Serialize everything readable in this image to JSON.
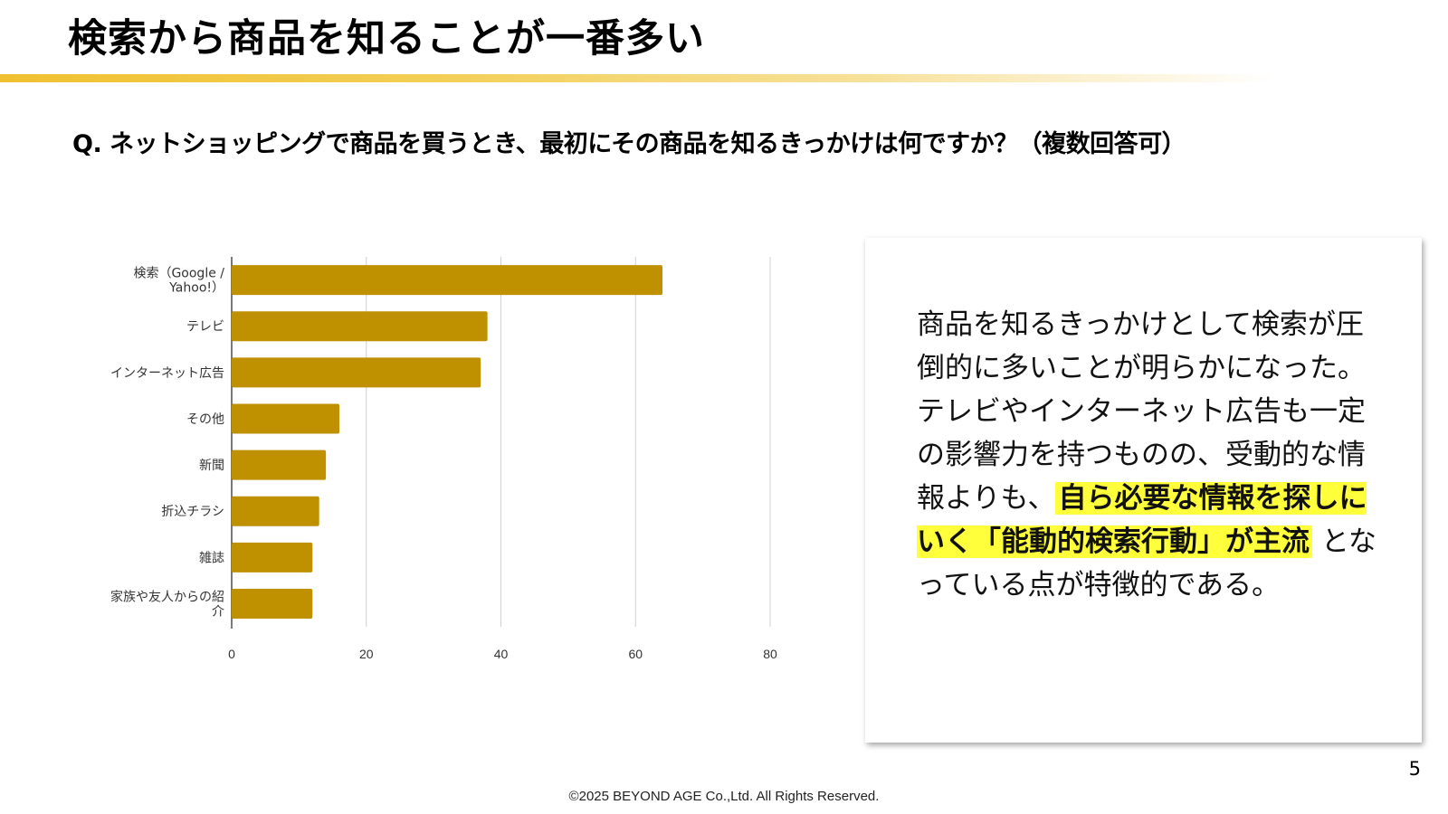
{
  "slide": {
    "title": "検索から商品を知ることが一番多い",
    "question": "Q. ネットショッピングで商品を買うとき、最初にその商品を知るきっかけは何ですか？（複数回答可）",
    "page_number": "5",
    "footer": "©2025 BEYOND AGE Co.,Ltd. All Rights Reserved."
  },
  "callout": {
    "text_before": "商品を知るきっかけとして検索が圧倒的に多いことが明らかになった。テレビやインターネット広告も一定の影響力を持つものの、受動的な情報よりも、",
    "highlight": "自ら必要な情報を探しにいく「能動的検索行動」が主流",
    "text_after": "となっている点が特徴的である。"
  },
  "chart_data": {
    "type": "bar",
    "orientation": "horizontal",
    "categories": [
      "検索（Google / Yahoo!）",
      "テレビ",
      "インターネット広告",
      "その他",
      "新聞",
      "折込チラシ",
      "雑誌",
      "家族や友人からの紹介"
    ],
    "category_label_lines": [
      [
        "検索（Google /",
        "Yahoo!）"
      ],
      [
        "テレビ"
      ],
      [
        "インターネット広告"
      ],
      [
        "その他"
      ],
      [
        "新聞"
      ],
      [
        "折込チラシ"
      ],
      [
        "雑誌"
      ],
      [
        "家族や友人からの紹",
        "介"
      ]
    ],
    "values": [
      64,
      38,
      37,
      16,
      14,
      13,
      12,
      12
    ],
    "xlim": [
      0,
      80
    ],
    "xticks": [
      "0",
      "20",
      "40",
      "60",
      "80"
    ],
    "grid": true,
    "bar_color": "#bf9000",
    "title": "",
    "xlabel": "",
    "ylabel": ""
  }
}
